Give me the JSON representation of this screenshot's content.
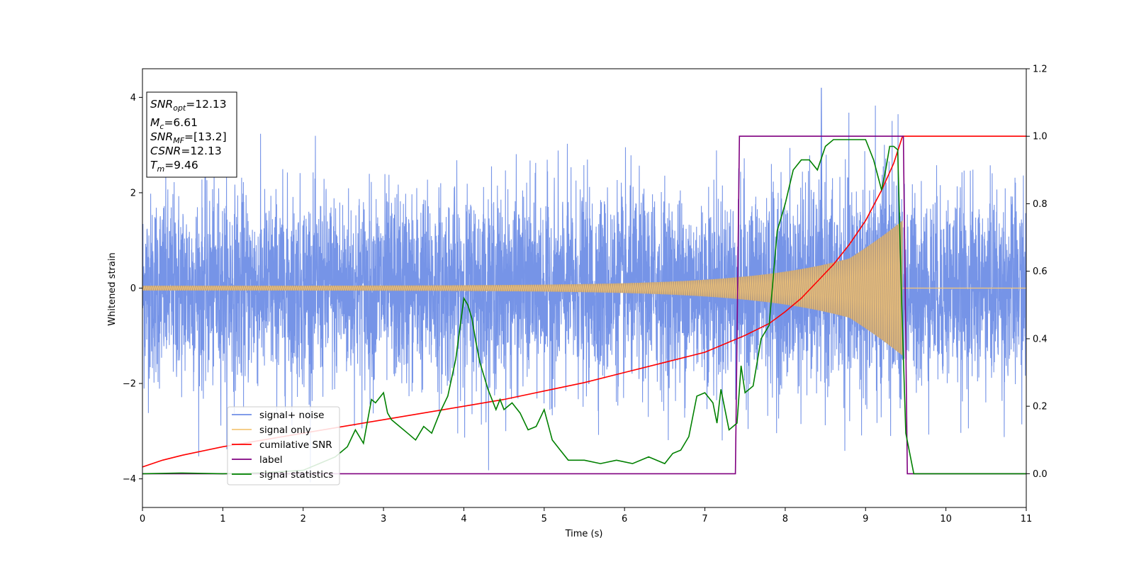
{
  "chart_data": {
    "type": "line",
    "title": "",
    "xlabel": "Time (s)",
    "ylabel": "Whitened strain",
    "y2label": "",
    "xlim": [
      0,
      11
    ],
    "ylim": [
      -4.6,
      4.6
    ],
    "y2lim": [
      -0.1,
      1.2
    ],
    "xticks": [
      "0",
      "1",
      "2",
      "3",
      "4",
      "5",
      "6",
      "7",
      "8",
      "9",
      "10",
      "11"
    ],
    "yticks": [
      "4",
      "2",
      "0",
      "−2",
      "−4"
    ],
    "y2ticks": [
      "1.2",
      "1.0",
      "0.8",
      "0.6",
      "0.4",
      "0.2",
      "0.0"
    ],
    "annotation": {
      "lines": [
        {
          "main": "SNR",
          "sub": "opt",
          "value": "=12.13"
        },
        {
          "main": "M",
          "sub": "c",
          "value": "=6.61"
        },
        {
          "main": "SNR",
          "sub": "MF",
          "value": "=[13.2]"
        },
        {
          "main": "CSNR",
          "sub": "",
          "value": "=12.13"
        },
        {
          "main": "T",
          "sub": "m",
          "value": "=9.46"
        }
      ]
    },
    "legend_position": "lower-left",
    "series": [
      {
        "name": "signal+ noise",
        "axis": "left",
        "color": "#6f8ee6",
        "noise_amplitude": 1.0,
        "peak_value": 4.2,
        "peak_time": 8.45
      },
      {
        "name": "signal only",
        "axis": "left",
        "color": "#f5c77a",
        "chirp": {
          "start_amplitude": 0.05,
          "end_time": 9.46,
          "end_amplitude": 0.9
        }
      },
      {
        "name": "cumilative SNR",
        "axis": "right",
        "color": "#ff0000",
        "x": [
          0,
          0.25,
          0.5,
          1,
          1.5,
          2,
          2.5,
          3,
          3.5,
          4,
          4.5,
          5,
          5.5,
          6,
          6.5,
          7,
          7.5,
          7.8,
          8,
          8.2,
          8.4,
          8.6,
          8.8,
          9,
          9.2,
          9.35,
          9.46,
          11
        ],
        "values": [
          0.02,
          0.04,
          0.055,
          0.08,
          0.1,
          0.12,
          0.14,
          0.16,
          0.18,
          0.2,
          0.22,
          0.245,
          0.27,
          0.3,
          0.33,
          0.36,
          0.41,
          0.445,
          0.48,
          0.52,
          0.57,
          0.62,
          0.68,
          0.75,
          0.84,
          0.92,
          1.0,
          1.0
        ]
      },
      {
        "name": "label",
        "axis": "right",
        "color": "#800080",
        "x": [
          0,
          7.38,
          7.43,
          9.47,
          9.52,
          11
        ],
        "values": [
          0,
          0,
          1,
          1,
          0,
          0
        ]
      },
      {
        "name": "signal statistics",
        "axis": "right",
        "color": "#008000",
        "x": [
          0,
          0.5,
          1,
          1.5,
          2,
          2.2,
          2.4,
          2.55,
          2.65,
          2.75,
          2.85,
          2.9,
          3.0,
          3.05,
          3.1,
          3.2,
          3.3,
          3.4,
          3.5,
          3.6,
          3.7,
          3.8,
          3.9,
          4.0,
          4.05,
          4.1,
          4.15,
          4.2,
          4.3,
          4.4,
          4.45,
          4.5,
          4.6,
          4.7,
          4.8,
          4.9,
          5.0,
          5.1,
          5.2,
          5.3,
          5.5,
          5.7,
          5.9,
          6.1,
          6.3,
          6.5,
          6.6,
          6.7,
          6.8,
          6.9,
          7.0,
          7.1,
          7.15,
          7.2,
          7.3,
          7.4,
          7.45,
          7.5,
          7.6,
          7.7,
          7.8,
          7.9,
          8.0,
          8.1,
          8.2,
          8.3,
          8.4,
          8.5,
          8.6,
          8.7,
          8.8,
          8.9,
          9.0,
          9.1,
          9.2,
          9.25,
          9.3,
          9.35,
          9.4,
          9.45,
          9.5,
          9.6,
          9.8,
          10.5,
          11
        ],
        "values": [
          0.0,
          0.002,
          0.0,
          0.003,
          0.01,
          0.03,
          0.05,
          0.08,
          0.13,
          0.09,
          0.22,
          0.21,
          0.24,
          0.18,
          0.16,
          0.14,
          0.12,
          0.1,
          0.14,
          0.12,
          0.18,
          0.23,
          0.34,
          0.52,
          0.5,
          0.46,
          0.39,
          0.33,
          0.25,
          0.19,
          0.22,
          0.19,
          0.21,
          0.18,
          0.13,
          0.14,
          0.19,
          0.1,
          0.07,
          0.04,
          0.04,
          0.03,
          0.04,
          0.03,
          0.05,
          0.03,
          0.06,
          0.07,
          0.11,
          0.23,
          0.24,
          0.21,
          0.15,
          0.25,
          0.13,
          0.15,
          0.32,
          0.24,
          0.26,
          0.4,
          0.44,
          0.72,
          0.8,
          0.9,
          0.93,
          0.93,
          0.9,
          0.97,
          0.99,
          0.99,
          0.99,
          0.99,
          0.99,
          0.93,
          0.84,
          0.9,
          0.97,
          0.97,
          0.96,
          0.5,
          0.12,
          0.0,
          0.0,
          0.0,
          0.0
        ]
      }
    ]
  }
}
